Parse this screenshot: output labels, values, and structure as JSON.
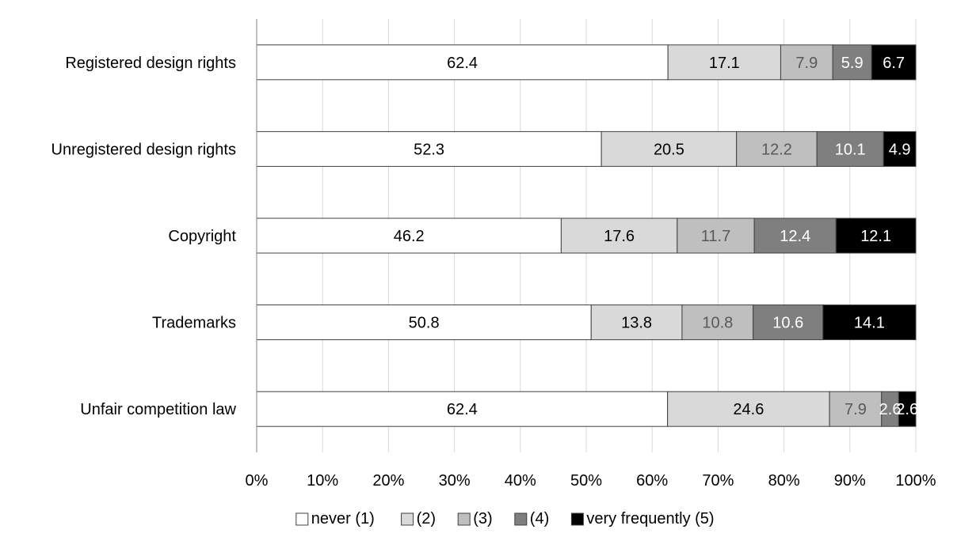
{
  "chart_data": {
    "type": "bar",
    "orientation": "horizontal",
    "stacked": "percent",
    "categories": [
      "Registered design rights",
      "Unregistered design rights",
      "Copyright",
      "Trademarks",
      "Unfair competition law"
    ],
    "series": [
      {
        "name": "never (1)",
        "color": "#ffffff",
        "label_color": "#000000",
        "values": [
          62.4,
          52.3,
          46.2,
          50.8,
          62.4
        ],
        "labels": [
          "62.4",
          "52.3",
          "46.2",
          "50.8",
          "62.4"
        ]
      },
      {
        "name": "(2)",
        "color": "#d9d9d9",
        "label_color": "#000000",
        "values": [
          17.1,
          20.5,
          17.6,
          13.8,
          24.6
        ],
        "labels": [
          "17.1",
          "20.5",
          "17.6",
          "13.8",
          "24.6"
        ]
      },
      {
        "name": "(3)",
        "color": "#bfbfbf",
        "label_color": "#595959",
        "values": [
          7.9,
          12.2,
          11.7,
          10.8,
          7.9
        ],
        "labels": [
          "7.9",
          "12.2",
          "11.7",
          "10.8",
          "7.9"
        ]
      },
      {
        "name": "(4)",
        "color": "#7f7f7f",
        "label_color": "#ffffff",
        "values": [
          5.9,
          10.1,
          12.4,
          10.6,
          2.6
        ],
        "labels": [
          "5.9",
          "10.1",
          "12.4",
          "10.6",
          "2.6"
        ]
      },
      {
        "name": "very frequently (5)",
        "color": "#000000",
        "label_color": "#ffffff",
        "values": [
          6.7,
          4.9,
          12.1,
          14.1,
          2.6
        ],
        "labels": [
          "6.7",
          "4.9",
          "12.1",
          "14.1",
          "2.6"
        ]
      }
    ],
    "x_ticks": [
      "0%",
      "10%",
      "20%",
      "30%",
      "40%",
      "50%",
      "60%",
      "70%",
      "80%",
      "90%",
      "100%"
    ],
    "xlim": [
      0,
      100
    ],
    "grid": "vertical",
    "legend_position": "bottom",
    "title": "",
    "xlabel": "",
    "ylabel": ""
  }
}
